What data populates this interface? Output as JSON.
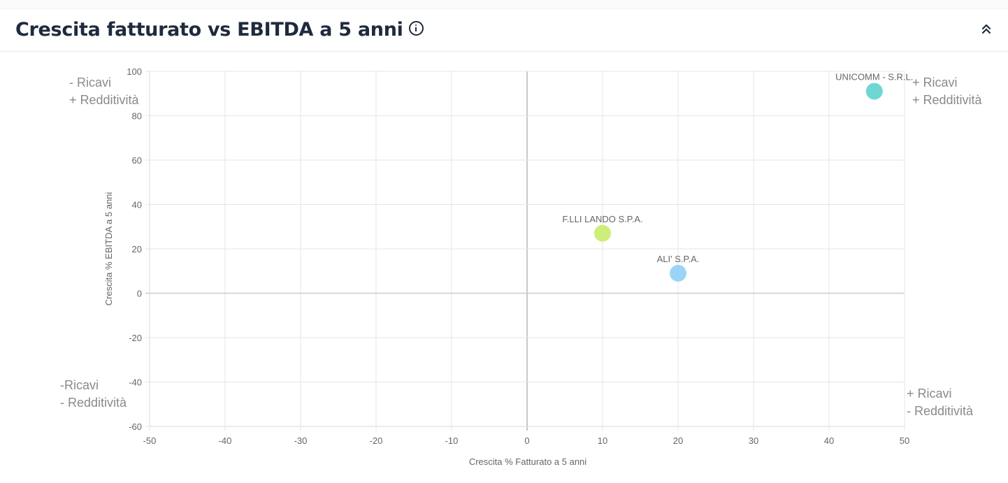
{
  "header": {
    "title": "Crescita fatturato vs EBITDA a 5 anni",
    "info_icon": "info-circle-icon",
    "collapse_icon": "chevrons-up-icon"
  },
  "chart_data": {
    "type": "scatter",
    "xlabel": "Crescita % Fatturato a 5 anni",
    "ylabel": "Crescita % EBITDA a 5 anni",
    "xlim": [
      -50,
      50
    ],
    "ylim": [
      -60,
      100
    ],
    "xticks": [
      -50,
      -40,
      -30,
      -20,
      -10,
      0,
      10,
      20,
      30,
      40,
      50
    ],
    "yticks": [
      100,
      80,
      60,
      40,
      20,
      0,
      -20,
      -40,
      -60
    ],
    "grid": true,
    "points": [
      {
        "label": "UNICOMM - S.R.L.",
        "x": 46,
        "y": 91,
        "color": "#5ed3cf"
      },
      {
        "label": "F.LLI LANDO S.P.A.",
        "x": 10,
        "y": 27,
        "color": "#c9ec6a"
      },
      {
        "label": "ALI' S.P.A.",
        "x": 20,
        "y": 9,
        "color": "#8fd0f7"
      }
    ],
    "quadrant_labels": [
      {
        "position": "top-left",
        "lines": [
          "- Ricavi",
          "+ Redditività"
        ]
      },
      {
        "position": "top-right",
        "lines": [
          "+ Ricavi",
          "+ Redditività"
        ]
      },
      {
        "position": "bottom-left",
        "lines": [
          "-Ricavi",
          "- Redditività"
        ]
      },
      {
        "position": "bottom-right",
        "lines": [
          "+ Ricavi",
          "- Redditività"
        ]
      }
    ]
  }
}
